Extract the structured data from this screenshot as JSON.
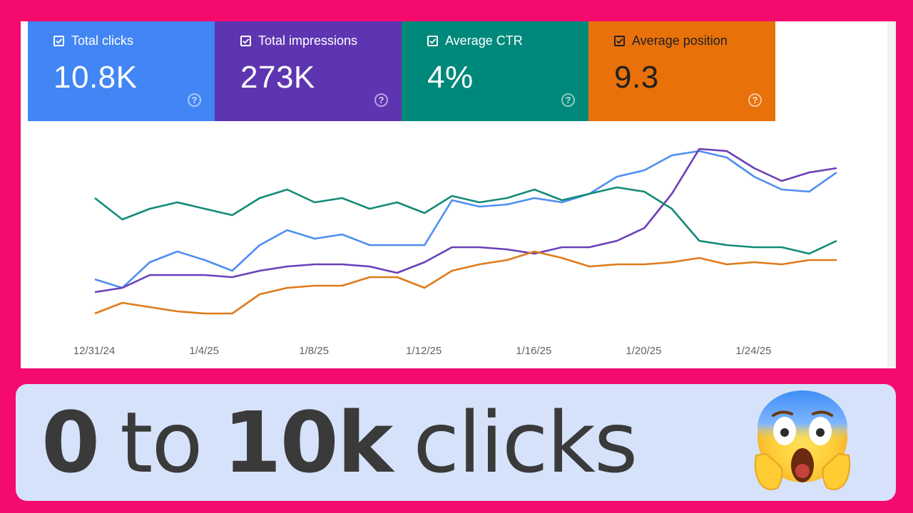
{
  "cards": [
    {
      "label": "Total clicks",
      "value": "10.8K",
      "color": "#4285f4"
    },
    {
      "label": "Total impressions",
      "value": "273K",
      "color": "#5e35b1"
    },
    {
      "label": "Average CTR",
      "value": "4%",
      "color": "#00897b"
    },
    {
      "label": "Average position",
      "value": "9.3",
      "color": "#e8710a"
    }
  ],
  "help_glyph": "?",
  "chart_data": {
    "type": "line",
    "x_tick_labels": [
      "12/31/24",
      "1/4/25",
      "1/8/25",
      "1/12/25",
      "1/16/25",
      "1/20/25",
      "1/24/25"
    ],
    "x_start_date": "2024-12-31",
    "y_axis_shown": false,
    "grid": false,
    "series": [
      {
        "name": "Total clicks",
        "color": "#4f8ef0",
        "values": [
          0.26,
          0.22,
          0.34,
          0.39,
          0.35,
          0.3,
          0.42,
          0.49,
          0.45,
          0.47,
          0.42,
          0.42,
          0.42,
          0.63,
          0.6,
          0.61,
          0.64,
          0.62,
          0.66,
          0.74,
          0.77,
          0.84,
          0.86,
          0.83,
          0.74,
          0.68,
          0.67,
          0.76
        ]
      },
      {
        "name": "Total impressions",
        "color": "#6a3fb8",
        "values": [
          0.2,
          0.22,
          0.28,
          0.28,
          0.28,
          0.27,
          0.3,
          0.32,
          0.33,
          0.33,
          0.32,
          0.29,
          0.34,
          0.41,
          0.41,
          0.4,
          0.38,
          0.41,
          0.41,
          0.44,
          0.5,
          0.66,
          0.87,
          0.86,
          0.78,
          0.72,
          0.76,
          0.78
        ]
      },
      {
        "name": "Average CTR",
        "color": "#138a78",
        "values": [
          0.64,
          0.54,
          0.59,
          0.62,
          0.59,
          0.56,
          0.64,
          0.68,
          0.62,
          0.64,
          0.59,
          0.62,
          0.57,
          0.65,
          0.62,
          0.64,
          0.68,
          0.63,
          0.66,
          0.69,
          0.67,
          0.59,
          0.44,
          0.42,
          0.41,
          0.41,
          0.38,
          0.44
        ]
      },
      {
        "name": "Average position",
        "color": "#e07a1a",
        "values": [
          0.1,
          0.15,
          0.13,
          0.11,
          0.1,
          0.1,
          0.19,
          0.22,
          0.23,
          0.23,
          0.27,
          0.27,
          0.22,
          0.3,
          0.33,
          0.35,
          0.39,
          0.36,
          0.32,
          0.33,
          0.33,
          0.34,
          0.36,
          0.33,
          0.34,
          0.33,
          0.35,
          0.35
        ]
      }
    ]
  },
  "caption": {
    "part1": "0",
    "part2": "to",
    "part3": "10k",
    "part4": "clicks"
  },
  "emoji": "screaming-face-emoji"
}
